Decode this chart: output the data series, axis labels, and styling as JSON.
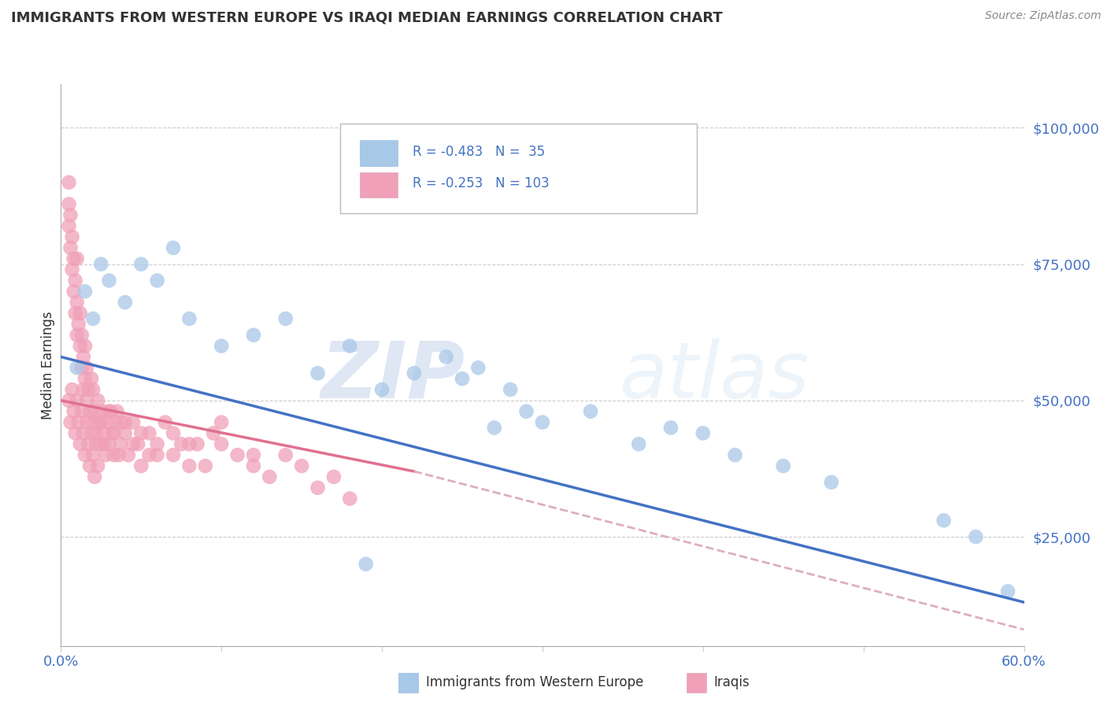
{
  "title": "IMMIGRANTS FROM WESTERN EUROPE VS IRAQI MEDIAN EARNINGS CORRELATION CHART",
  "source": "Source: ZipAtlas.com",
  "ylabel": "Median Earnings",
  "watermark_zip": "ZIP",
  "watermark_atlas": "atlas",
  "y_ticks": [
    25000,
    50000,
    75000,
    100000
  ],
  "y_tick_labels": [
    "$25,000",
    "$50,000",
    "$75,000",
    "$100,000"
  ],
  "x_min": 0.0,
  "x_max": 0.6,
  "y_min": 5000,
  "y_max": 108000,
  "legend": {
    "blue_r": "-0.483",
    "blue_n": "35",
    "pink_r": "-0.253",
    "pink_n": "103",
    "blue_label": "Immigrants from Western Europe",
    "pink_label": "Iraqis"
  },
  "blue_color": "#a8c8e8",
  "pink_color": "#f0a0b8",
  "blue_line_color": "#4472c4",
  "pink_line_color": "#e07090",
  "pink_dash_color": "#ddb0b8",
  "blue_points_x": [
    0.01,
    0.015,
    0.02,
    0.025,
    0.03,
    0.04,
    0.05,
    0.06,
    0.07,
    0.08,
    0.1,
    0.12,
    0.14,
    0.16,
    0.18,
    0.2,
    0.22,
    0.24,
    0.25,
    0.26,
    0.28,
    0.3,
    0.33,
    0.36,
    0.38,
    0.4,
    0.42,
    0.45,
    0.48,
    0.55,
    0.57,
    0.59,
    0.27,
    0.19,
    0.29
  ],
  "blue_points_y": [
    56000,
    70000,
    65000,
    75000,
    72000,
    68000,
    75000,
    72000,
    78000,
    65000,
    60000,
    62000,
    65000,
    55000,
    60000,
    52000,
    55000,
    58000,
    54000,
    56000,
    52000,
    46000,
    48000,
    42000,
    45000,
    44000,
    40000,
    38000,
    35000,
    28000,
    25000,
    15000,
    45000,
    20000,
    48000
  ],
  "pink_points_x": [
    0.005,
    0.005,
    0.005,
    0.006,
    0.006,
    0.007,
    0.007,
    0.008,
    0.008,
    0.009,
    0.009,
    0.01,
    0.01,
    0.01,
    0.011,
    0.012,
    0.012,
    0.013,
    0.013,
    0.014,
    0.014,
    0.015,
    0.015,
    0.016,
    0.016,
    0.017,
    0.018,
    0.019,
    0.02,
    0.02,
    0.021,
    0.022,
    0.023,
    0.024,
    0.025,
    0.026,
    0.027,
    0.028,
    0.029,
    0.03,
    0.031,
    0.032,
    0.033,
    0.034,
    0.035,
    0.037,
    0.038,
    0.04,
    0.042,
    0.045,
    0.048,
    0.05,
    0.055,
    0.06,
    0.065,
    0.07,
    0.075,
    0.08,
    0.085,
    0.09,
    0.095,
    0.1,
    0.11,
    0.12,
    0.13,
    0.14,
    0.15,
    0.16,
    0.17,
    0.18,
    0.005,
    0.006,
    0.007,
    0.008,
    0.009,
    0.01,
    0.011,
    0.012,
    0.013,
    0.014,
    0.015,
    0.016,
    0.017,
    0.018,
    0.019,
    0.02,
    0.021,
    0.022,
    0.023,
    0.025,
    0.027,
    0.03,
    0.033,
    0.036,
    0.04,
    0.045,
    0.05,
    0.055,
    0.06,
    0.07,
    0.08,
    0.1,
    0.12
  ],
  "pink_points_y": [
    90000,
    86000,
    82000,
    84000,
    78000,
    80000,
    74000,
    76000,
    70000,
    72000,
    66000,
    68000,
    62000,
    76000,
    64000,
    60000,
    66000,
    62000,
    56000,
    58000,
    52000,
    54000,
    60000,
    50000,
    56000,
    52000,
    48000,
    54000,
    46000,
    52000,
    48000,
    44000,
    50000,
    46000,
    42000,
    48000,
    44000,
    40000,
    46000,
    42000,
    48000,
    44000,
    40000,
    46000,
    48000,
    42000,
    46000,
    44000,
    40000,
    46000,
    42000,
    44000,
    40000,
    42000,
    46000,
    40000,
    42000,
    38000,
    42000,
    38000,
    44000,
    42000,
    40000,
    38000,
    36000,
    40000,
    38000,
    34000,
    36000,
    32000,
    50000,
    46000,
    52000,
    48000,
    44000,
    50000,
    46000,
    42000,
    48000,
    44000,
    40000,
    46000,
    42000,
    38000,
    44000,
    40000,
    36000,
    42000,
    38000,
    46000,
    42000,
    48000,
    44000,
    40000,
    46000,
    42000,
    38000,
    44000,
    40000,
    44000,
    42000,
    46000,
    40000
  ]
}
